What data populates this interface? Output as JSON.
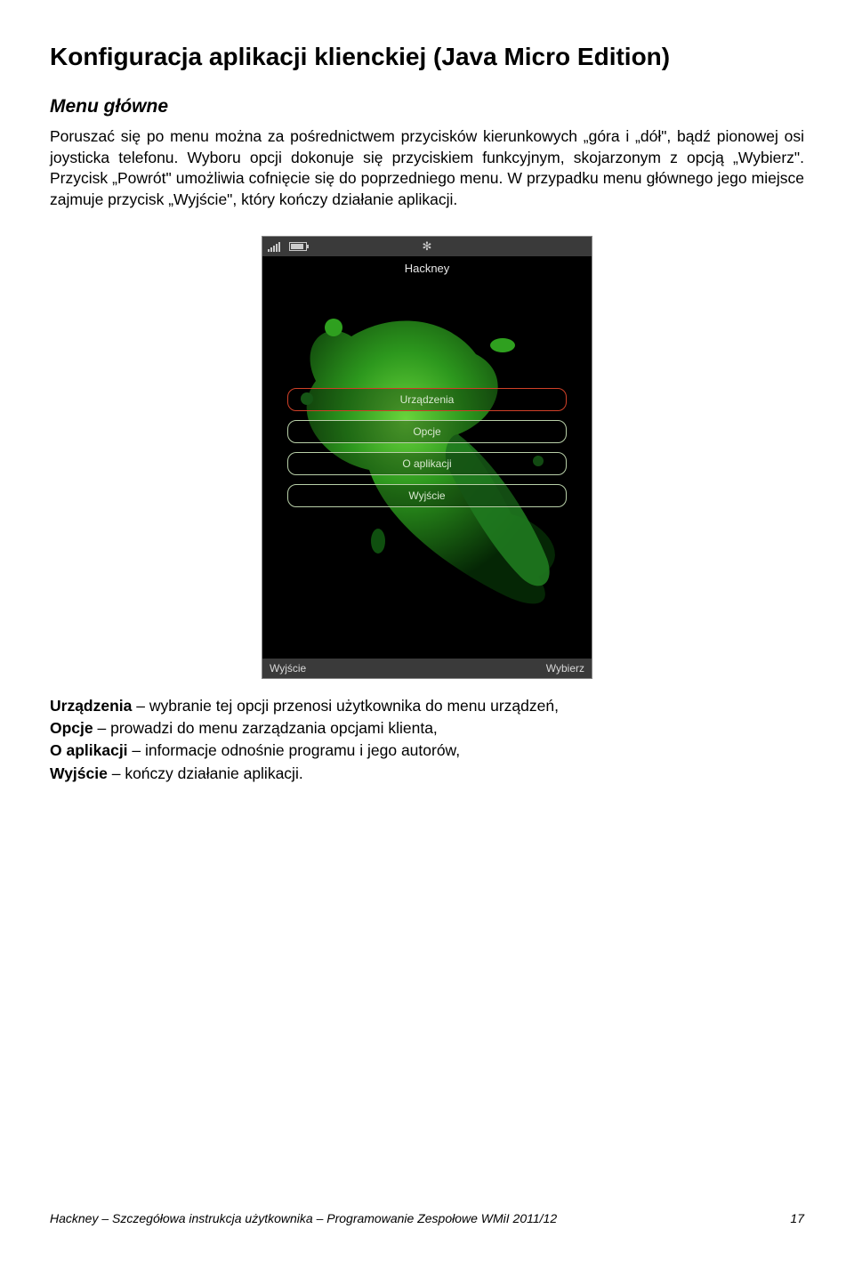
{
  "title": "Konfiguracja aplikacji klienckiej (Java Micro Edition)",
  "subtitle": "Menu główne",
  "paragraph": "Poruszać się po menu można za pośrednictwem przycisków kierunkowych „góra i „dół\", bądź pionowej osi joysticka telefonu. Wyboru opcji dokonuje się przyciskiem funkcyjnym, skojarzonym z opcją  „Wybierz\". Przycisk „Powrót\" umożliwia cofnięcie się do poprzedniego menu.  W przypadku menu głównego jego miejsce zajmuje przycisk „Wyjście\", który kończy działanie aplikacji.",
  "phone": {
    "app_title": "Hackney",
    "menu": {
      "items": [
        {
          "label": "Urządzenia",
          "selected": true
        },
        {
          "label": "Opcje",
          "selected": false
        },
        {
          "label": "O aplikacji",
          "selected": false
        },
        {
          "label": "Wyjście",
          "selected": false
        }
      ]
    },
    "softkeys": {
      "left": "Wyjście",
      "right": "Wybierz"
    },
    "colors": {
      "splat_dark": "#0a3d0a",
      "splat_mid": "#1f7a1f",
      "splat_light": "#4fbf2f",
      "background": "#000000",
      "border_normal": "#b8cfa8",
      "border_selected": "#d04028"
    }
  },
  "definitions": [
    {
      "term": "Urządzenia",
      "desc": " – wybranie tej opcji przenosi użytkownika do menu urządzeń,"
    },
    {
      "term": "Opcje",
      "desc": " – prowadzi do menu zarządzania opcjami klienta,"
    },
    {
      "term": "O aplikacji",
      "desc": " – informacje odnośnie programu i jego autorów,"
    },
    {
      "term": "Wyjście",
      "desc": " – kończy działanie aplikacji."
    }
  ],
  "footer": {
    "text": "Hackney – Szczegółowa instrukcja użytkownika – Programowanie Zespołowe WMiI 2011/12",
    "page": "17"
  }
}
